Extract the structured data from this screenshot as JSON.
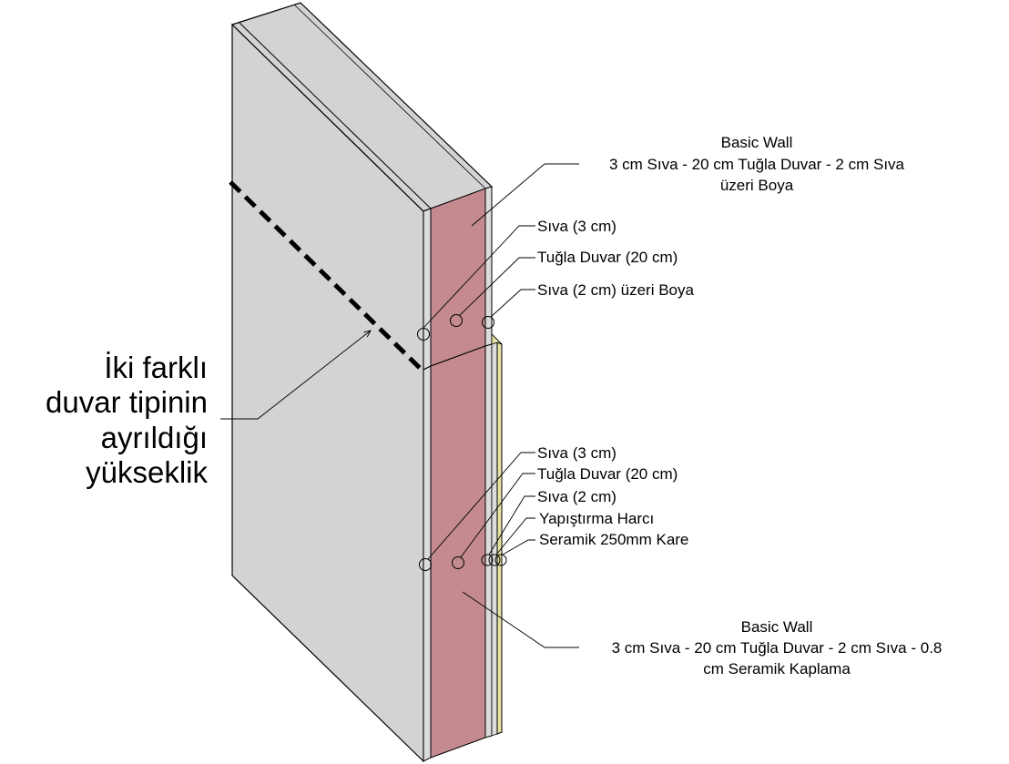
{
  "colors": {
    "wall_face": "#d3d3d3",
    "plaster": "#dcdcdc",
    "brick": "#c48a8f",
    "tile": "#e8e3a6",
    "outline": "#000000"
  },
  "upper_wall": {
    "title": "Basic Wall",
    "line1": "3 cm Sıva - 20 cm Tuğla Duvar - 2 cm Sıva",
    "line2": "üzeri Boya",
    "layers": [
      "Sıva (3 cm)",
      "Tuğla Duvar (20 cm)",
      "Sıva (2 cm) üzeri Boya"
    ]
  },
  "lower_wall": {
    "title": "Basic Wall",
    "line1": "3 cm Sıva - 20 cm Tuğla Duvar - 2 cm Sıva - 0.8",
    "line2": "cm Seramik Kaplama",
    "layers": [
      "Sıva (3 cm)",
      "Tuğla Duvar (20 cm)",
      "Sıva (2 cm)",
      "Yapıştırma Harcı",
      "Seramik 250mm Kare"
    ]
  },
  "split_note": {
    "lines": [
      "İki farklı",
      "duvar tipinin",
      "ayrıldığı",
      "yükseklik"
    ]
  }
}
